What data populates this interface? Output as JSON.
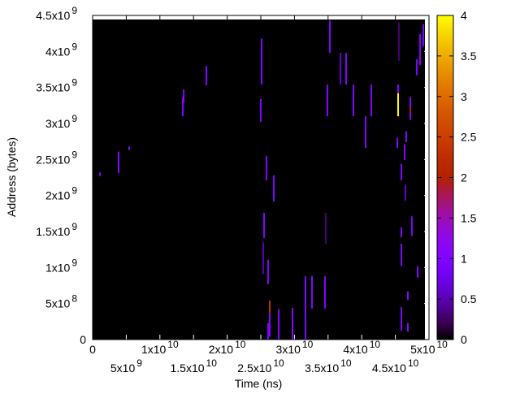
{
  "chart_data": {
    "type": "heatmap",
    "xlabel": "Time (ns)",
    "ylabel": "Address (bytes)",
    "xlim": [
      0,
      50000000000.0
    ],
    "ylim": [
      0,
      4500000000.0
    ],
    "x_ticks": [
      {
        "value": 0,
        "base": "0",
        "exp": ""
      },
      {
        "value": 5000000000.0,
        "base": "5x10",
        "exp": "9"
      },
      {
        "value": 10000000000.0,
        "base": "1x10",
        "exp": "10"
      },
      {
        "value": 15000000000.0,
        "base": "1.5x10",
        "exp": "10"
      },
      {
        "value": 20000000000.0,
        "base": "2x10",
        "exp": "10"
      },
      {
        "value": 25000000000.0,
        "base": "2.5x10",
        "exp": "10"
      },
      {
        "value": 30000000000.0,
        "base": "3x10",
        "exp": "10"
      },
      {
        "value": 35000000000.0,
        "base": "3.5x10",
        "exp": "10"
      },
      {
        "value": 40000000000.0,
        "base": "4x10",
        "exp": "10"
      },
      {
        "value": 45000000000.0,
        "base": "4.5x10",
        "exp": "10"
      },
      {
        "value": 50000000000.0,
        "base": "5x10",
        "exp": "10"
      }
    ],
    "y_ticks": [
      {
        "value": 0,
        "base": "0",
        "exp": ""
      },
      {
        "value": 500000000.0,
        "base": "5x10",
        "exp": "8"
      },
      {
        "value": 1000000000.0,
        "base": "1x10",
        "exp": "9"
      },
      {
        "value": 1500000000.0,
        "base": "1.5x10",
        "exp": "9"
      },
      {
        "value": 2000000000.0,
        "base": "2x10",
        "exp": "9"
      },
      {
        "value": 2500000000.0,
        "base": "2.5x10",
        "exp": "9"
      },
      {
        "value": 3000000000.0,
        "base": "3x10",
        "exp": "9"
      },
      {
        "value": 3500000000.0,
        "base": "3.5x10",
        "exp": "9"
      },
      {
        "value": 4000000000.0,
        "base": "4x10",
        "exp": "9"
      },
      {
        "value": 4500000000.0,
        "base": "4.5x10",
        "exp": "9"
      }
    ],
    "colorbar": {
      "range": [
        0,
        4
      ],
      "ticks": [
        "0",
        "0.5",
        "1",
        "1.5",
        "2",
        "2.5",
        "3",
        "3.5",
        "4"
      ],
      "palette": "black-purple-red-orange-yellow"
    },
    "background_color": "#000000",
    "segments_columns": [
      "time_ns",
      "address_start",
      "address_end",
      "value"
    ],
    "segments": [
      [
        1090000000.0,
        2270000000.0,
        2320000000.0,
        1
      ],
      [
        3860000000.0,
        2310000000.0,
        2610000000.0,
        1
      ],
      [
        5430000000.0,
        2630000000.0,
        2680000000.0,
        1
      ],
      [
        13410000000.0,
        3100000000.0,
        3360000000.0,
        1
      ],
      [
        13530000000.0,
        3280000000.0,
        3470000000.0,
        1
      ],
      [
        16910000000.0,
        3530000000.0,
        3800000000.0,
        1
      ],
      [
        25120000000.0,
        3540000000.0,
        4180000000.0,
        1
      ],
      [
        25000000000.0,
        3140000000.0,
        3340000000.0,
        1
      ],
      [
        25000000000.0,
        3020000000.0,
        3140000000.0,
        1
      ],
      [
        25840000000.0,
        2210000000.0,
        2550000000.0,
        1
      ],
      [
        26930000000.0,
        1920000000.0,
        2280000000.0,
        1
      ],
      [
        25480000000.0,
        1410000000.0,
        1760000000.0,
        1
      ],
      [
        25360000000.0,
        910000000.0,
        1350000000.0,
        0.5
      ],
      [
        26090000000.0,
        770000000.0,
        1110000000.0,
        1
      ],
      [
        26330000000.0,
        370000000.0,
        540000000.0,
        2.3
      ],
      [
        26090000000.0,
        0.0,
        230000000.0,
        1
      ],
      [
        26330000000.0,
        40000000.0,
        370000000.0,
        1
      ],
      [
        27660000000.0,
        0.0,
        420000000.0,
        1
      ],
      [
        29710000000.0,
        0.0,
        440000000.0,
        1
      ],
      [
        31640000000.0,
        0.0,
        880000000.0,
        1
      ],
      [
        32610000000.0,
        430000000.0,
        880000000.0,
        1
      ],
      [
        34540000000.0,
        430000000.0,
        880000000.0,
        1
      ],
      [
        34660000000.0,
        1330000000.0,
        1760000000.0,
        0.3
      ],
      [
        35260000000.0,
        3980000000.0,
        4430000000.0,
        1
      ],
      [
        36830000000.0,
        3540000000.0,
        3980000000.0,
        0.6
      ],
      [
        37680000000.0,
        3540000000.0,
        3980000000.0,
        1
      ],
      [
        34900000000.0,
        3100000000.0,
        3540000000.0,
        1
      ],
      [
        38770000000.0,
        3100000000.0,
        3540000000.0,
        1
      ],
      [
        41420000000.0,
        3100000000.0,
        3540000000.0,
        1
      ],
      [
        40580000000.0,
        2660000000.0,
        3100000000.0,
        1
      ],
      [
        45410000000.0,
        3420000000.0,
        3540000000.0,
        1
      ],
      [
        45410000000.0,
        3100000000.0,
        3420000000.0,
        4
      ],
      [
        45530000000.0,
        3870000000.0,
        4400000000.0,
        0.3
      ],
      [
        47220000000.0,
        3050000000.0,
        3370000000.0,
        1
      ],
      [
        47220000000.0,
        3160000000.0,
        3220000000.0,
        2
      ],
      [
        46620000000.0,
        2740000000.0,
        2890000000.0,
        1
      ],
      [
        46380000000.0,
        2490000000.0,
        2710000000.0,
        1
      ],
      [
        45290000000.0,
        2660000000.0,
        2800000000.0,
        1
      ],
      [
        45890000000.0,
        2210000000.0,
        2440000000.0,
        1
      ],
      [
        46500000000.0,
        1930000000.0,
        2150000000.0,
        0.6
      ],
      [
        47460000000.0,
        1440000000.0,
        1710000000.0,
        1
      ],
      [
        45890000000.0,
        1420000000.0,
        1560000000.0,
        1
      ],
      [
        45890000000.0,
        1020000000.0,
        1330000000.0,
        1
      ],
      [
        48310000000.0,
        860000000.0,
        1020000000.0,
        1
      ],
      [
        46860000000.0,
        550000000.0,
        670000000.0,
        1
      ],
      [
        45890000000.0,
        120000000.0,
        450000000.0,
        1
      ],
      [
        46860000000.0,
        110000000.0,
        230000000.0,
        1
      ],
      [
        48670000000.0,
        3810000000.0,
        4240000000.0,
        1
      ],
      [
        49150000000.0,
        4070000000.0,
        4380000000.0,
        1
      ],
      [
        48190000000.0,
        3670000000.0,
        3890000000.0,
        1
      ]
    ]
  }
}
